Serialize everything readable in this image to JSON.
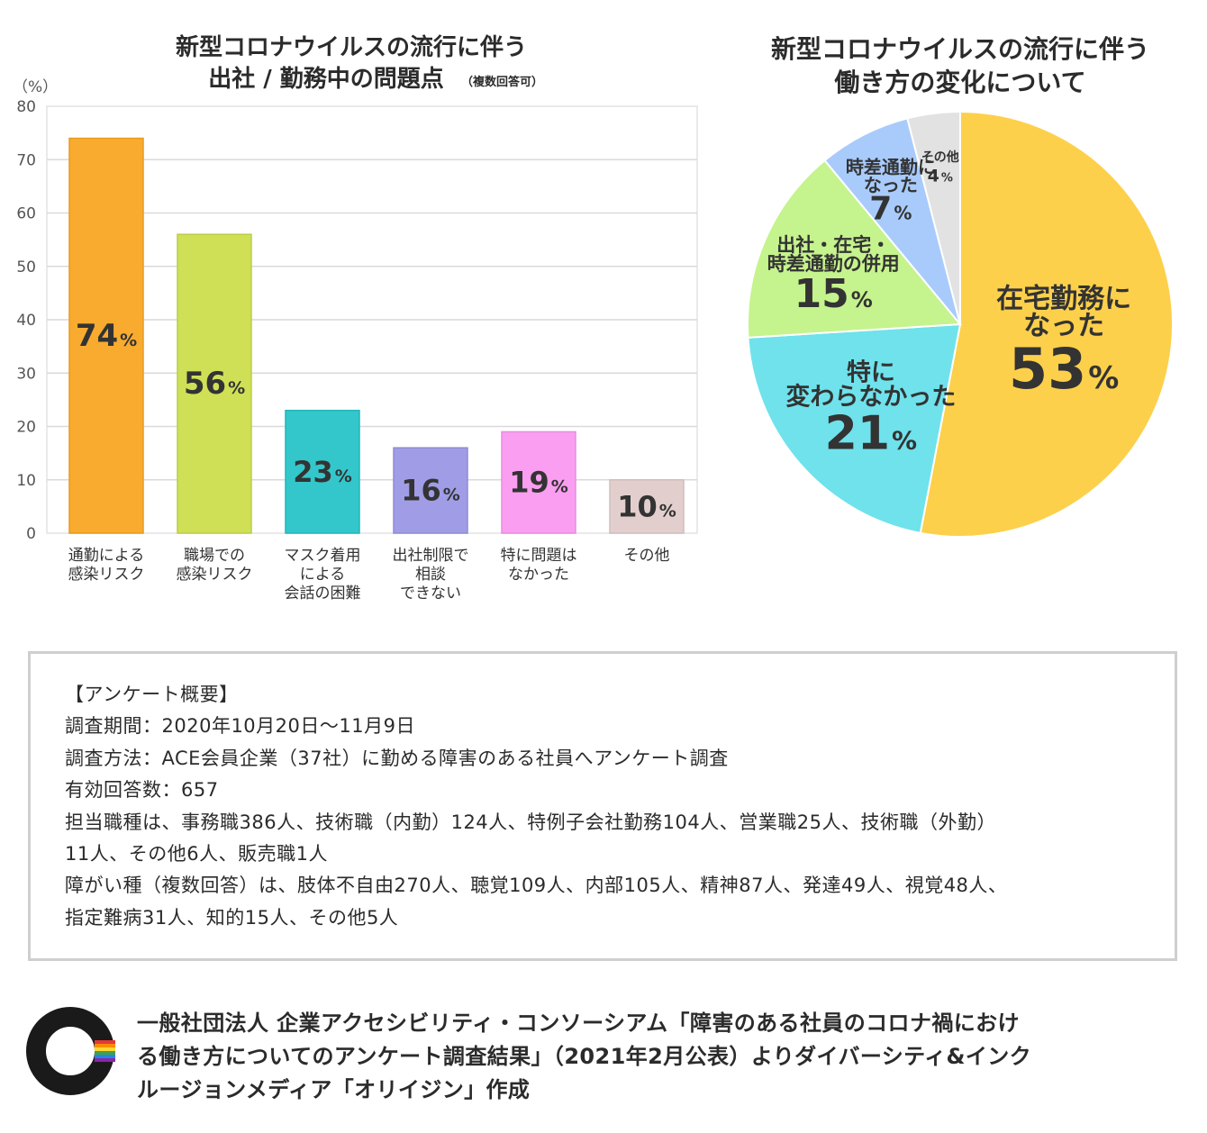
{
  "chart_data": [
    {
      "type": "bar",
      "title": "新型コロナウイルスの流行に伴う",
      "subtitle": "出社 / 勤務中の問題点",
      "subtitle_note": "（複数回答可）",
      "ylabel": "（%）",
      "ylim": [
        0,
        80
      ],
      "yticks": [
        0,
        10,
        20,
        30,
        40,
        50,
        60,
        70,
        80
      ],
      "grid": true,
      "categories": [
        [
          "通勤による",
          "感染リスク"
        ],
        [
          "職場での",
          "感染リスク"
        ],
        [
          "マスク着用",
          "による",
          "会話の困難"
        ],
        [
          "出社制限で",
          "相談",
          "できない"
        ],
        [
          "特に問題は",
          "なかった"
        ],
        [
          "その他"
        ]
      ],
      "values": [
        74,
        56,
        23,
        16,
        19,
        10
      ],
      "colors": [
        "#f8ab2e",
        "#cfe057",
        "#33c7cb",
        "#a09de6",
        "#f99ef0",
        "#e2cfcd"
      ],
      "borders": [
        "#e89a1e",
        "#bccd46",
        "#22b6ba",
        "#8f8cd5",
        "#e88ddf",
        "#d1bebc"
      ],
      "pct_sign": "%"
    },
    {
      "type": "pie",
      "title_lines": [
        "新型コロナウイルスの流行に伴う",
        "働き方の変化について"
      ],
      "slices": [
        {
          "label_lines": [
            "在宅勤務に",
            "なった"
          ],
          "value": 53,
          "color": "#fdd04b"
        },
        {
          "label_lines": [
            "特に",
            "変わらなかった"
          ],
          "value": 21,
          "color": "#6fe2ec"
        },
        {
          "label_lines": [
            "出社・在宅・",
            "時差通勤の併用"
          ],
          "value": 15,
          "color": "#c5f38d"
        },
        {
          "label_lines": [
            "時差通勤に",
            "なった"
          ],
          "value": 7,
          "color": "#a8cbfb"
        },
        {
          "label_lines": [
            "その他"
          ],
          "value": 4,
          "color": "#e2e2e2"
        }
      ],
      "pct_sign": "%"
    }
  ],
  "survey": {
    "lines": [
      "【アンケート概要】",
      "調査期間：2020年10月20日〜11月9日",
      "調査方法：ACE会員企業（37社）に勤める障害のある社員へアンケート調査",
      "有効回答数：657",
      "担当職種は、事務職386人、技術職（内勤）124人、特例子会社勤務104人、営業職25人、技術職（外勤）",
      "11人、その他6人、販売職1人",
      "障がい種（複数回答）は、肢体不自由270人、聴覚109人、内部105人、精神87人、発達49人、視覚48人、",
      "指定難病31人、知的15人、その他5人"
    ]
  },
  "footer": {
    "lines": [
      "一般社団法人 企業アクセシビリティ・コンソーシアム「障害のある社員のコロナ禍におけ",
      "る働き方についてのアンケート調査結果」（2021年2月公表）よりダイバーシティ&インク",
      "ルージョンメディア「オリイジン」作成"
    ]
  },
  "colors": {
    "grid": "#d9d9d9",
    "plot_border": "#e3e3e3",
    "text": "#2b2b2b",
    "box_border": "#cfcfcf",
    "rainbow": [
      "#e53935",
      "#fb8c00",
      "#fdd835",
      "#43a047",
      "#1e88e5",
      "#8e24aa"
    ]
  }
}
